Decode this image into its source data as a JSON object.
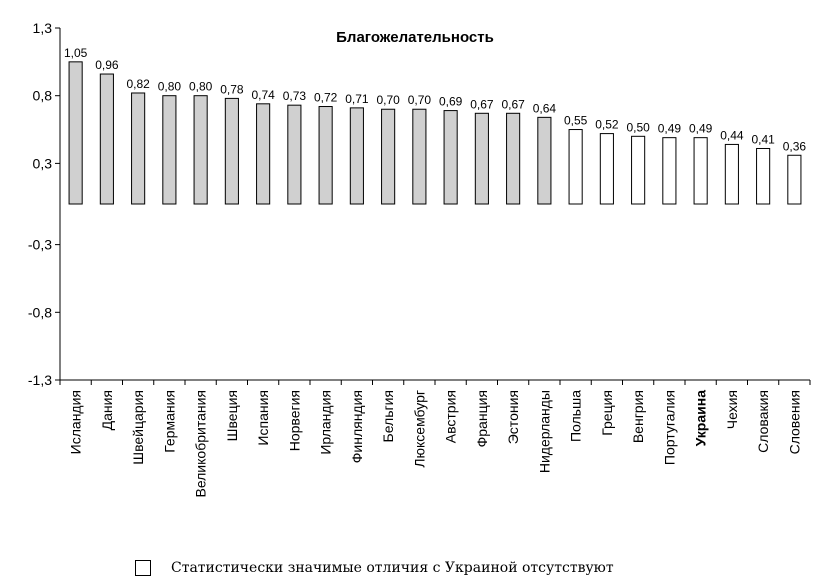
{
  "chart_data": {
    "type": "bar",
    "title": "Благожелательность",
    "categories": [
      "Исландия",
      "Дания",
      "Швейцария",
      "Германия",
      "Великобритания",
      "Швеция",
      "Испания",
      "Норвегия",
      "Ирландия",
      "Финляндия",
      "Бельгия",
      "Люксембург",
      "Австрия",
      "Франция",
      "Эстония",
      "Нидерланды",
      "Польша",
      "Греция",
      "Венгрия",
      "Португалия",
      "Украина",
      "Чехия",
      "Словакия",
      "Словения"
    ],
    "values": [
      1.05,
      0.96,
      0.82,
      0.8,
      0.8,
      0.78,
      0.74,
      0.73,
      0.72,
      0.71,
      0.7,
      0.7,
      0.69,
      0.67,
      0.67,
      0.64,
      0.55,
      0.52,
      0.5,
      0.49,
      0.49,
      0.44,
      0.41,
      0.36
    ],
    "value_labels": [
      "1,05",
      "0,96",
      "0,82",
      "0,80",
      "0,80",
      "0,78",
      "0,74",
      "0,73",
      "0,72",
      "0,71",
      "0,70",
      "0,70",
      "0,69",
      "0,67",
      "0,67",
      "0,64",
      "0,55",
      "0,52",
      "0,50",
      "0,49",
      "0,49",
      "0,44",
      "0,41",
      "0,36"
    ],
    "significant_difference": [
      true,
      true,
      true,
      true,
      true,
      true,
      true,
      true,
      true,
      true,
      true,
      true,
      true,
      true,
      true,
      true,
      false,
      false,
      false,
      false,
      false,
      false,
      false,
      false
    ],
    "bold_categories": [
      "Украина"
    ],
    "ylim": [
      -1.3,
      1.3
    ],
    "y_ticks": [
      1.3,
      0.8,
      0.3,
      -0.3,
      -0.8,
      -1.3
    ],
    "y_tick_labels": [
      "1,3",
      "0,8",
      "0,3",
      "-0,3",
      "-0,8",
      "-1,3"
    ],
    "colors": {
      "significant": "#d0d0d0",
      "not_significant": "#ffffff",
      "stroke": "#000000"
    },
    "legend": {
      "label": "Статистически значимые отличия с Украиной отсутствуют",
      "placement": "bottom"
    },
    "grid": false
  }
}
